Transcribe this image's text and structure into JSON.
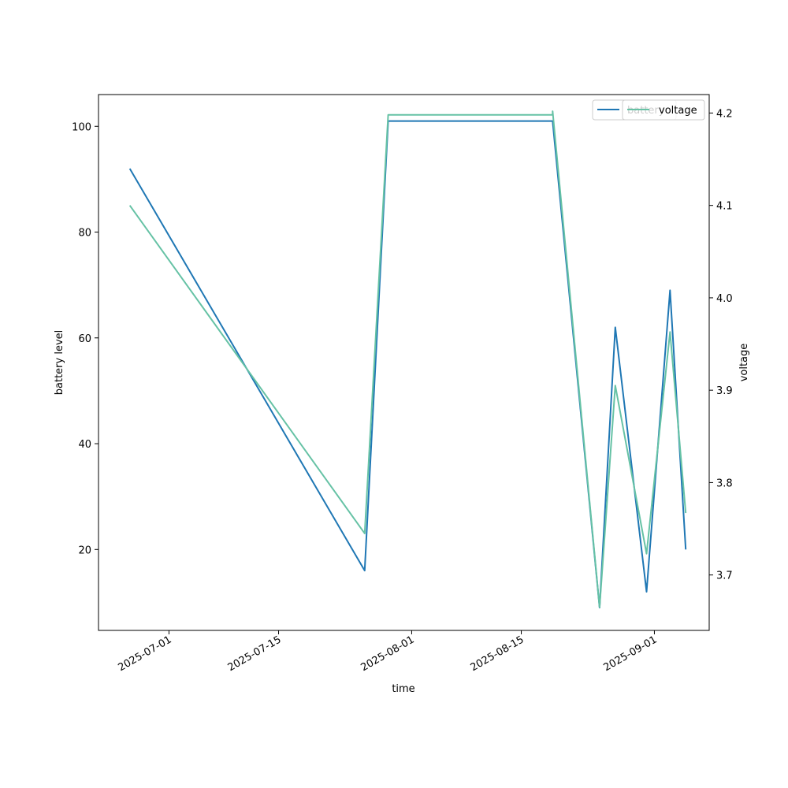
{
  "chart_data": {
    "type": "line",
    "xlabel": "time",
    "ylabel": "battery level",
    "y2label": "voltage",
    "x_ticks": [
      "2025-07-01",
      "2025-07-15",
      "2025-08-01",
      "2025-08-15",
      "2025-09-01"
    ],
    "y_ticks": [
      20,
      40,
      60,
      80,
      100
    ],
    "y2_ticks": [
      "3.7",
      "3.8",
      "3.9",
      "4.0",
      "4.1",
      "4.2"
    ],
    "xlim": [
      "2025-06-22",
      "2025-09-08"
    ],
    "ylim": [
      4.7,
      106
    ],
    "y2lim": [
      3.64,
      4.22
    ],
    "legend_placement": "upper-right",
    "series": [
      {
        "name": "battery",
        "axis": "left",
        "color": "#1f77b4",
        "x": [
          "2025-06-26",
          "2025-07-26",
          "2025-07-29",
          "2025-08-19",
          "2025-08-19",
          "2025-08-25",
          "2025-08-27",
          "2025-08-31",
          "2025-09-03",
          "2025-09-05"
        ],
        "y": [
          92,
          16,
          101,
          101,
          101,
          9,
          62,
          12,
          69,
          20
        ]
      },
      {
        "name": "voltage",
        "axis": "right",
        "color": "#66c2a5",
        "x": [
          "2025-06-26",
          "2025-07-26",
          "2025-07-29",
          "2025-08-19",
          "2025-08-19",
          "2025-08-25",
          "2025-08-27",
          "2025-08-31",
          "2025-09-03",
          "2025-09-05"
        ],
        "y": [
          4.1,
          3.745,
          4.198,
          4.198,
          4.202,
          3.665,
          3.905,
          3.723,
          3.963,
          3.767
        ]
      }
    ]
  }
}
